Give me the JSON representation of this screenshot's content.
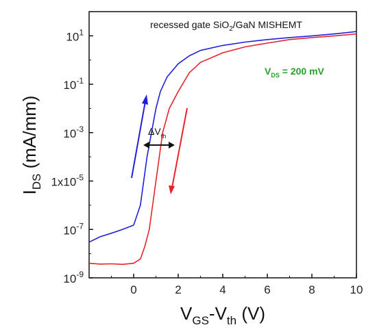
{
  "chart_data": {
    "type": "line",
    "title": "recessed gate SiO₂/GaN MISHEMT",
    "xlabel": "V_GS - V_th (V)",
    "ylabel": "I_DS (mA/mm)",
    "xlim": [
      -2,
      10
    ],
    "ylim": [
      1e-09,
      100
    ],
    "y_scale": "log",
    "grid": false,
    "x_ticks": [
      0,
      2,
      4,
      6,
      8,
      10
    ],
    "y_ticks": [
      {
        "value": 10,
        "mantissa": "10",
        "exp": "1"
      },
      {
        "value": 0.1,
        "mantissa": "10",
        "exp": "-1"
      },
      {
        "value": 0.001,
        "mantissa": "10",
        "exp": "-3"
      },
      {
        "value": 1e-05,
        "mantissa": "1x10",
        "exp": "-5"
      },
      {
        "value": 1e-07,
        "mantissa": "10",
        "exp": "-7"
      },
      {
        "value": 1e-09,
        "mantissa": "10",
        "exp": "-9"
      }
    ],
    "annotations": {
      "vds_label": "V_DS = 200 mV",
      "hysteresis_label": "ΔV_th"
    },
    "series": [
      {
        "color": "#1f1fdc",
        "x": [
          -2,
          -1.5,
          -1,
          -0.5,
          0,
          0.3,
          0.6,
          0.8,
          1,
          1.2,
          1.5,
          2,
          2.5,
          3,
          4,
          5,
          6,
          7,
          8,
          9,
          10
        ],
        "y": [
          3e-08,
          5e-08,
          7e-08,
          1e-07,
          1.5e-07,
          1e-06,
          0.0001,
          0.001,
          0.01,
          0.05,
          0.2,
          0.7,
          1.5,
          2.5,
          4,
          5.5,
          7,
          8.5,
          10,
          12,
          15
        ]
      },
      {
        "color": "#e8222a",
        "x": [
          -2,
          -1.5,
          -1,
          -0.5,
          0,
          0.3,
          0.5,
          0.7,
          1,
          1.3,
          1.6,
          2,
          2.5,
          3,
          4,
          5,
          6,
          7,
          8,
          9,
          10
        ],
        "y": [
          4e-09,
          3.7e-09,
          3.8e-09,
          3.6e-09,
          4e-09,
          6e-09,
          2e-08,
          1e-07,
          1e-05,
          0.001,
          0.01,
          0.05,
          0.3,
          0.8,
          2,
          3.5,
          5,
          7,
          8.5,
          10,
          12
        ]
      }
    ]
  }
}
